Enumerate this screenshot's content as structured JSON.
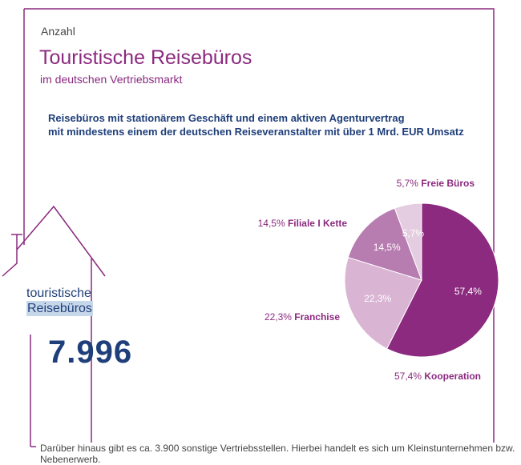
{
  "header": {
    "kicker": "Anzahl",
    "title": "Touristische Reisebüros",
    "subtitle": "im deutschen Vertriebsmarkt"
  },
  "description": {
    "line1": "Reisebüros mit stationärem Geschäft und einem aktiven Agenturvertrag",
    "line2": "mit mindestens einem der deutschen Reiseveranstalter mit über 1 Mrd. EUR Umsatz"
  },
  "house": {
    "label_line1": "touristische",
    "label_line2": "Reisebüros",
    "total": "7.996"
  },
  "footnote": "Darüber hinaus gibt es ca. 3.900 sonstige Vertriebsstellen. Hierbei handelt es sich um Kleinstunternehmen bzw. Nebenerwerb.",
  "colors": {
    "frame": "#8b2a7f",
    "title": "#8b2a7f",
    "navy": "#1f3f7a"
  },
  "chart_data": {
    "type": "pie",
    "title": "Touristische Reisebüros",
    "start_angle_deg": 0,
    "direction": "clockwise",
    "slices": [
      {
        "name": "Kooperation",
        "value": 57.4,
        "display": "57,4%",
        "color": "#8b2a7f",
        "text_color": "#ffffff",
        "label_position": "bottom"
      },
      {
        "name": "Franchise",
        "value": 22.3,
        "display": "22,3%",
        "color": "#d9b4d3",
        "text_color": "#ffffff",
        "label_position": "left"
      },
      {
        "name": "Filiale I Kette",
        "value": 14.5,
        "display": "14,5%",
        "color": "#b77cb0",
        "text_color": "#ffffff",
        "label_position": "top-left"
      },
      {
        "name": "Freie Büros",
        "value": 5.7,
        "display": "5,7%",
        "color": "#e5cde1",
        "text_color": "#ffffff",
        "label_position": "top-right"
      }
    ]
  }
}
